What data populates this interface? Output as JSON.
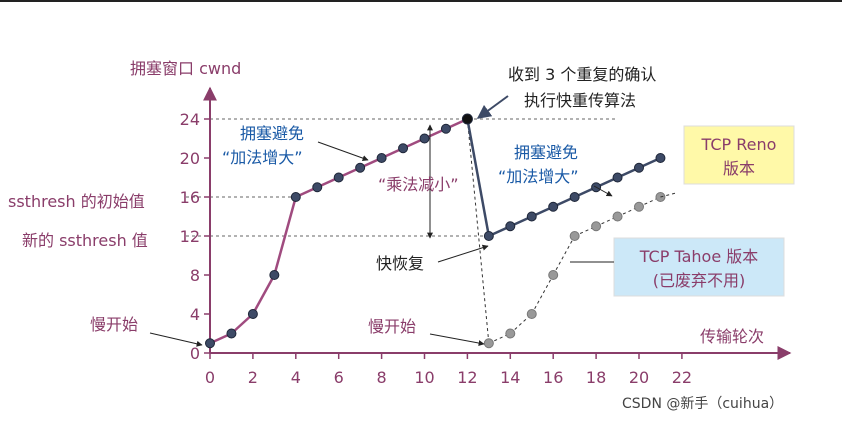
{
  "axes": {
    "y_title": "拥塞窗口 cwnd",
    "x_title": "传输轮次",
    "x_ticks": [
      "0",
      "2",
      "4",
      "6",
      "8",
      "10",
      "12",
      "14",
      "16",
      "18",
      "20",
      "22"
    ],
    "y_ticks": [
      "0",
      "4",
      "8",
      "12",
      "16",
      "20",
      "24"
    ]
  },
  "labels": {
    "ssthresh_initial": "ssthresh 的初始值",
    "ssthresh_new": "新的 ssthresh 值",
    "slow_start_1": "慢开始",
    "slow_start_2": "慢开始",
    "ca_1_line1": "拥塞避免",
    "ca_1_line2": "“加法增大”",
    "ca_2_line1": "拥塞避免",
    "ca_2_line2": "“加法增大”",
    "md": "“乘法减小”",
    "three_dup_line1": "收到 3 个重复的确认",
    "three_dup_line2": "执行快重传算法",
    "fast_recovery": "快恢复",
    "reno_line1": "TCP Reno",
    "reno_line2": "版本",
    "tahoe_line1": "TCP Tahoe 版本",
    "tahoe_line2": "(已废弃不用)",
    "watermark": "CSDN @新手（cuihua）"
  },
  "colors": {
    "reno_line": "#a04b7f",
    "reno_line_after": "#3d4a66",
    "marker": "#3d4a66",
    "tahoe_marker": "#999999",
    "reno_box": "#fff9a8",
    "tahoe_box": "#cce8f8",
    "text_purple": "#8a3d6a",
    "text_blue": "#1a5aa6"
  },
  "chart_data": {
    "type": "line",
    "xlim": [
      0,
      22
    ],
    "ylim": [
      0,
      24
    ],
    "series": [
      {
        "name": "TCP Reno",
        "points": [
          [
            0,
            1
          ],
          [
            1,
            2
          ],
          [
            2,
            4
          ],
          [
            3,
            8
          ],
          [
            4,
            16
          ],
          [
            5,
            17
          ],
          [
            6,
            18
          ],
          [
            7,
            19
          ],
          [
            8,
            20
          ],
          [
            9,
            21
          ],
          [
            10,
            22
          ],
          [
            11,
            23
          ],
          [
            12,
            24
          ],
          [
            13,
            12
          ],
          [
            14,
            13
          ],
          [
            15,
            14
          ],
          [
            16,
            15
          ],
          [
            17,
            16
          ],
          [
            18,
            17
          ],
          [
            19,
            18
          ],
          [
            20,
            19
          ],
          [
            21,
            20
          ]
        ]
      },
      {
        "name": "TCP Tahoe",
        "points": [
          [
            12,
            24
          ],
          [
            13,
            1
          ],
          [
            14,
            2
          ],
          [
            15,
            4
          ],
          [
            16,
            8
          ],
          [
            17,
            12
          ],
          [
            18,
            13
          ],
          [
            19,
            14
          ],
          [
            20,
            15
          ],
          [
            21,
            16
          ]
        ]
      }
    ],
    "reference_levels": {
      "ssthresh_initial": 16,
      "ssthresh_new": 12,
      "peak": 24
    }
  }
}
